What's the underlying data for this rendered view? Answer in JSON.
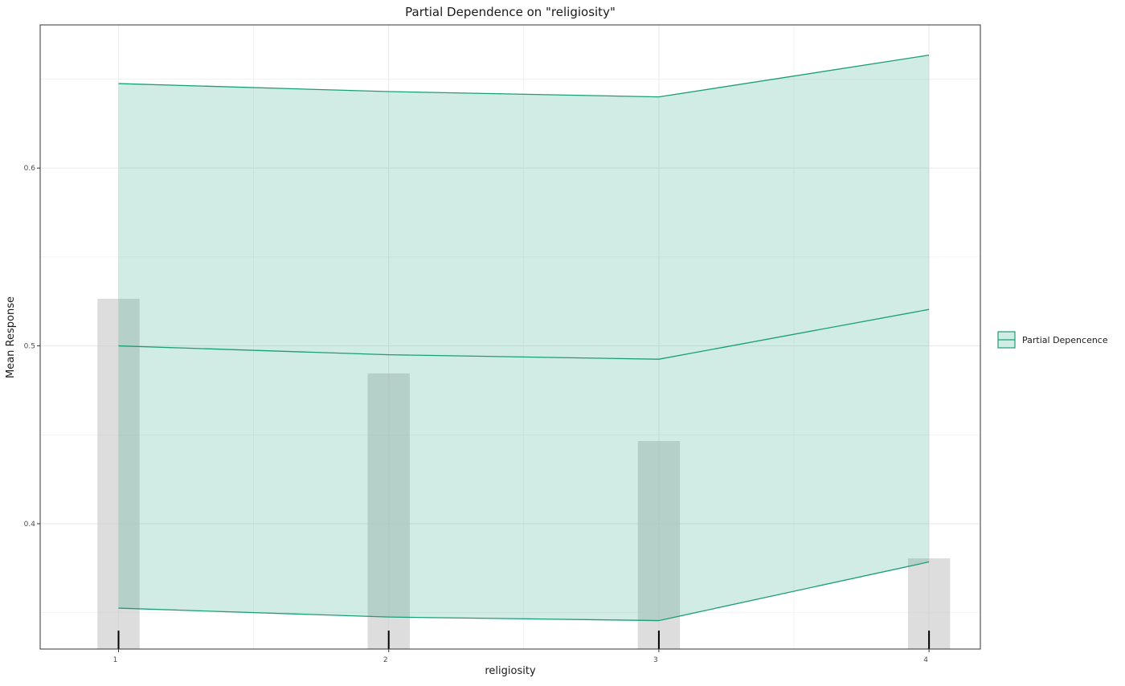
{
  "chart_data": {
    "type": "line",
    "title": "Partial Dependence on \"religiosity\"",
    "xlabel": "religiosity",
    "ylabel": "Mean Response",
    "x": [
      1,
      2,
      3,
      4
    ],
    "x_ticks": [
      1,
      2,
      3,
      4
    ],
    "x_tick_labels": [
      "1",
      "2",
      "3",
      "4"
    ],
    "xlim": [
      0.71,
      4.19
    ],
    "y_ticks": [
      0.4,
      0.5,
      0.6
    ],
    "y_tick_labels": [
      "0.4",
      "0.5",
      "0.6"
    ],
    "ylim": [
      0.3295,
      0.6805
    ],
    "grid": true,
    "legend": {
      "position": "right",
      "entries": [
        "Partial Depencence"
      ]
    },
    "series": [
      {
        "name": "Partial Depencence",
        "mean": [
          0.5,
          0.495,
          0.4925,
          0.5205
        ],
        "lower": [
          0.3525,
          0.3475,
          0.3455,
          0.3785
        ],
        "upper": [
          0.6475,
          0.643,
          0.64,
          0.6635
        ]
      }
    ],
    "histogram": {
      "x": [
        1,
        2,
        3,
        4
      ],
      "heights": [
        0.5265,
        0.4845,
        0.4465,
        0.3805
      ]
    },
    "rug": [
      1,
      2,
      3,
      4
    ],
    "colors": {
      "line": "#1b9e77",
      "ribbon": "#1b9e77",
      "histogram": "#c8c8c8",
      "rug": "#000000",
      "grid": "#ebebeb",
      "panel_border": "#333333"
    }
  }
}
